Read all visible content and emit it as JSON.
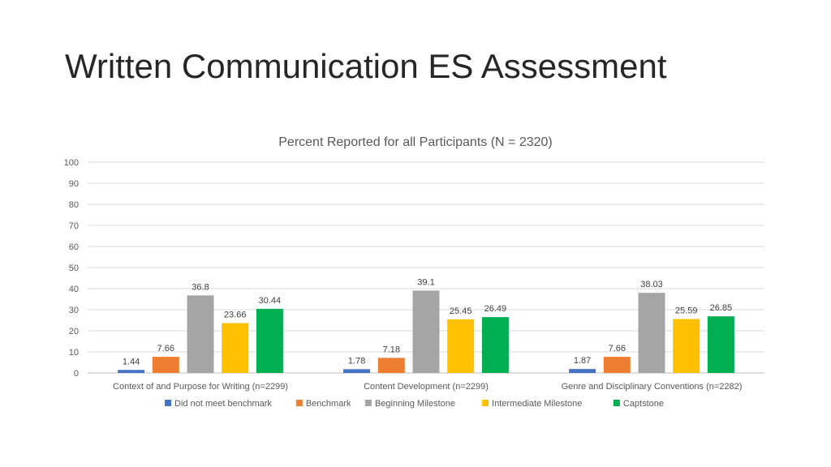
{
  "slide": {
    "title": "Written Communication ES Assessment"
  },
  "chart_data": {
    "type": "bar",
    "title": "Percent Reported for all Participants (N = 2320)",
    "xlabel": "",
    "ylabel": "",
    "ylim": [
      0,
      100
    ],
    "yticks": [
      0,
      10,
      20,
      30,
      40,
      50,
      60,
      70,
      80,
      90,
      100
    ],
    "grid": true,
    "legend_position": "bottom",
    "categories": [
      "Context of and Purpose for Writing (n=2299)",
      "Content Development (n=2299)",
      "Genre and Disciplinary Conventions (n=2282)"
    ],
    "series": [
      {
        "name": "Did not meet benchmark",
        "color": "#4472C4",
        "values": [
          1.44,
          1.78,
          1.87
        ]
      },
      {
        "name": "Benchmark",
        "color": "#ED7D31",
        "values": [
          7.66,
          7.18,
          7.66
        ]
      },
      {
        "name": "Beginning Milestone",
        "color": "#A5A5A5",
        "values": [
          36.8,
          39.1,
          38.03
        ]
      },
      {
        "name": "Intermediate Milestone",
        "color": "#FFC000",
        "values": [
          23.66,
          25.45,
          25.59
        ]
      },
      {
        "name": "Captstone",
        "color": "#00B050",
        "values": [
          30.44,
          26.49,
          26.85
        ]
      }
    ]
  }
}
